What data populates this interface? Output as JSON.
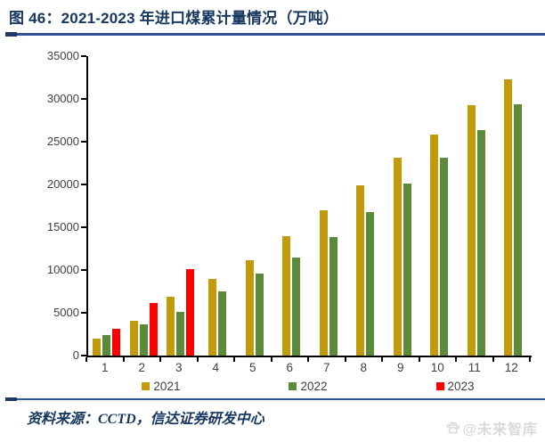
{
  "figure": {
    "title": "图 46：2021-2023 年进口煤累计量情况（万吨）",
    "source": "资料来源：CCTD，信达证券研发中心",
    "watermark": "@未来智库"
  },
  "colors": {
    "title_navy": "#17375E",
    "rule_blue": "#2E5395",
    "axis_line": "#000000",
    "axis_text": "#3F3F3F",
    "watermark_gray": "#D9D9D9"
  },
  "chart_data": {
    "type": "bar",
    "title": "2021-2023 年进口煤累计量情况（万吨）",
    "xlabel": "",
    "ylabel": "",
    "categories": [
      "1",
      "2",
      "3",
      "4",
      "5",
      "6",
      "7",
      "8",
      "9",
      "10",
      "11",
      "12"
    ],
    "series": [
      {
        "name": "2021",
        "color": "#C29B0C",
        "values": [
          2000,
          4100,
          6900,
          9000,
          11100,
          14000,
          17000,
          19900,
          23100,
          25800,
          29300,
          32300
        ]
      },
      {
        "name": "2022",
        "color": "#5B8A3A",
        "values": [
          2400,
          3600,
          5100,
          7500,
          9600,
          11500,
          13900,
          16800,
          20100,
          23100,
          26400,
          29400
        ]
      },
      {
        "name": "2023",
        "color": "#FF0000",
        "values": [
          3100,
          6100,
          10100,
          null,
          null,
          null,
          null,
          null,
          null,
          null,
          null,
          null
        ]
      }
    ],
    "ylim": [
      0,
      35000
    ],
    "yticks": [
      0,
      5000,
      10000,
      15000,
      20000,
      25000,
      30000,
      35000
    ],
    "grid": false,
    "legend_position": "bottom"
  }
}
